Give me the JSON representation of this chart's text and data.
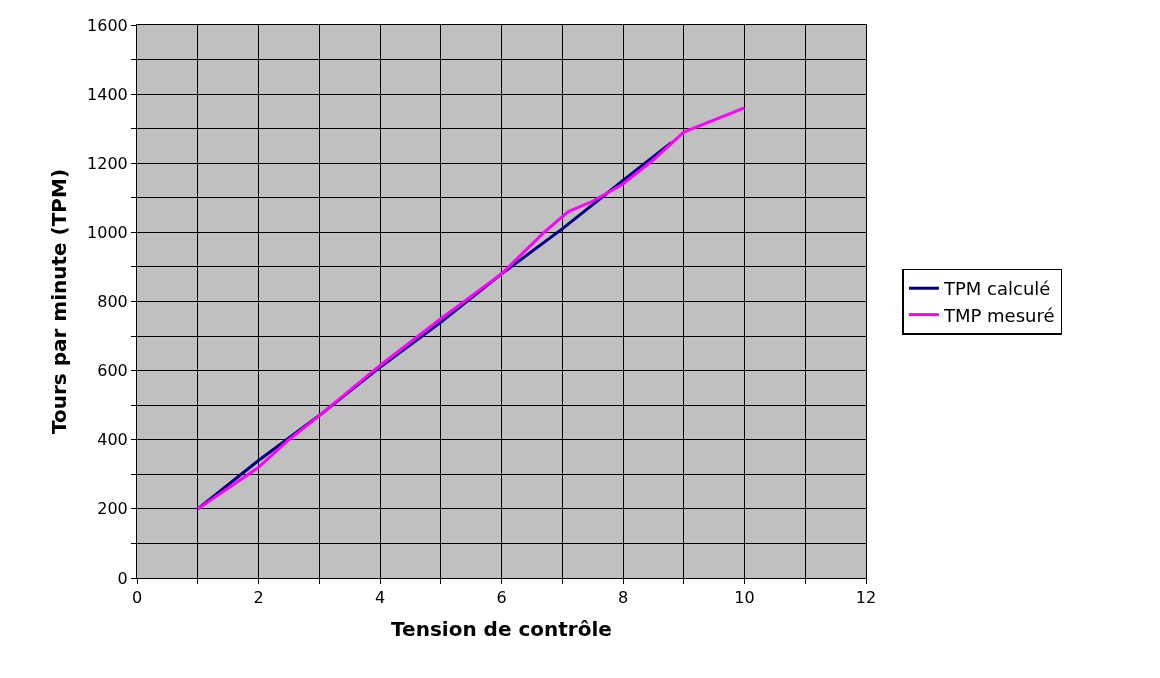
{
  "chart_data": {
    "type": "line",
    "xlabel": "Tension de contrôle",
    "ylabel": "Tours par minute (TPM)",
    "series": [
      {
        "name": "TPM calculé",
        "color": "#000080",
        "x": [
          1,
          2,
          3,
          4,
          5,
          6,
          7,
          8,
          8.8
        ],
        "values": [
          200,
          340,
          470,
          610,
          740,
          880,
          1010,
          1150,
          1260
        ]
      },
      {
        "name": "TMP mesuré",
        "color": "#ff00ff",
        "x": [
          1,
          2,
          2.5,
          3,
          4,
          5,
          6,
          6.7,
          7.1,
          7.5,
          8,
          8.5,
          9,
          10
        ],
        "values": [
          200,
          320,
          400,
          470,
          615,
          750,
          880,
          1000,
          1060,
          1090,
          1140,
          1210,
          1290,
          1360
        ]
      }
    ],
    "xlim": [
      0,
      12
    ],
    "xticks": [
      0,
      {
        "value": 1,
        "label": null
      },
      2,
      {
        "value": 3,
        "label": null
      },
      4,
      {
        "value": 5,
        "label": null
      },
      6,
      {
        "value": 7,
        "label": null
      },
      8,
      {
        "value": 9,
        "label": null
      },
      10,
      {
        "value": 11,
        "label": null
      },
      12
    ],
    "ylim": [
      0,
      1600
    ],
    "yticks": [
      0,
      {
        "value": 100,
        "label": null
      },
      200,
      {
        "value": 300,
        "label": null
      },
      400,
      {
        "value": 500,
        "label": null
      },
      600,
      {
        "value": 700,
        "label": null
      },
      800,
      {
        "value": 900,
        "label": null
      },
      1000,
      {
        "value": 1100,
        "label": null
      },
      1200,
      {
        "value": 1300,
        "label": null
      },
      1400,
      {
        "value": 1500,
        "label": null
      },
      1600
    ],
    "grid": true,
    "legend": "right",
    "marker": "none",
    "line_style": "solid"
  }
}
